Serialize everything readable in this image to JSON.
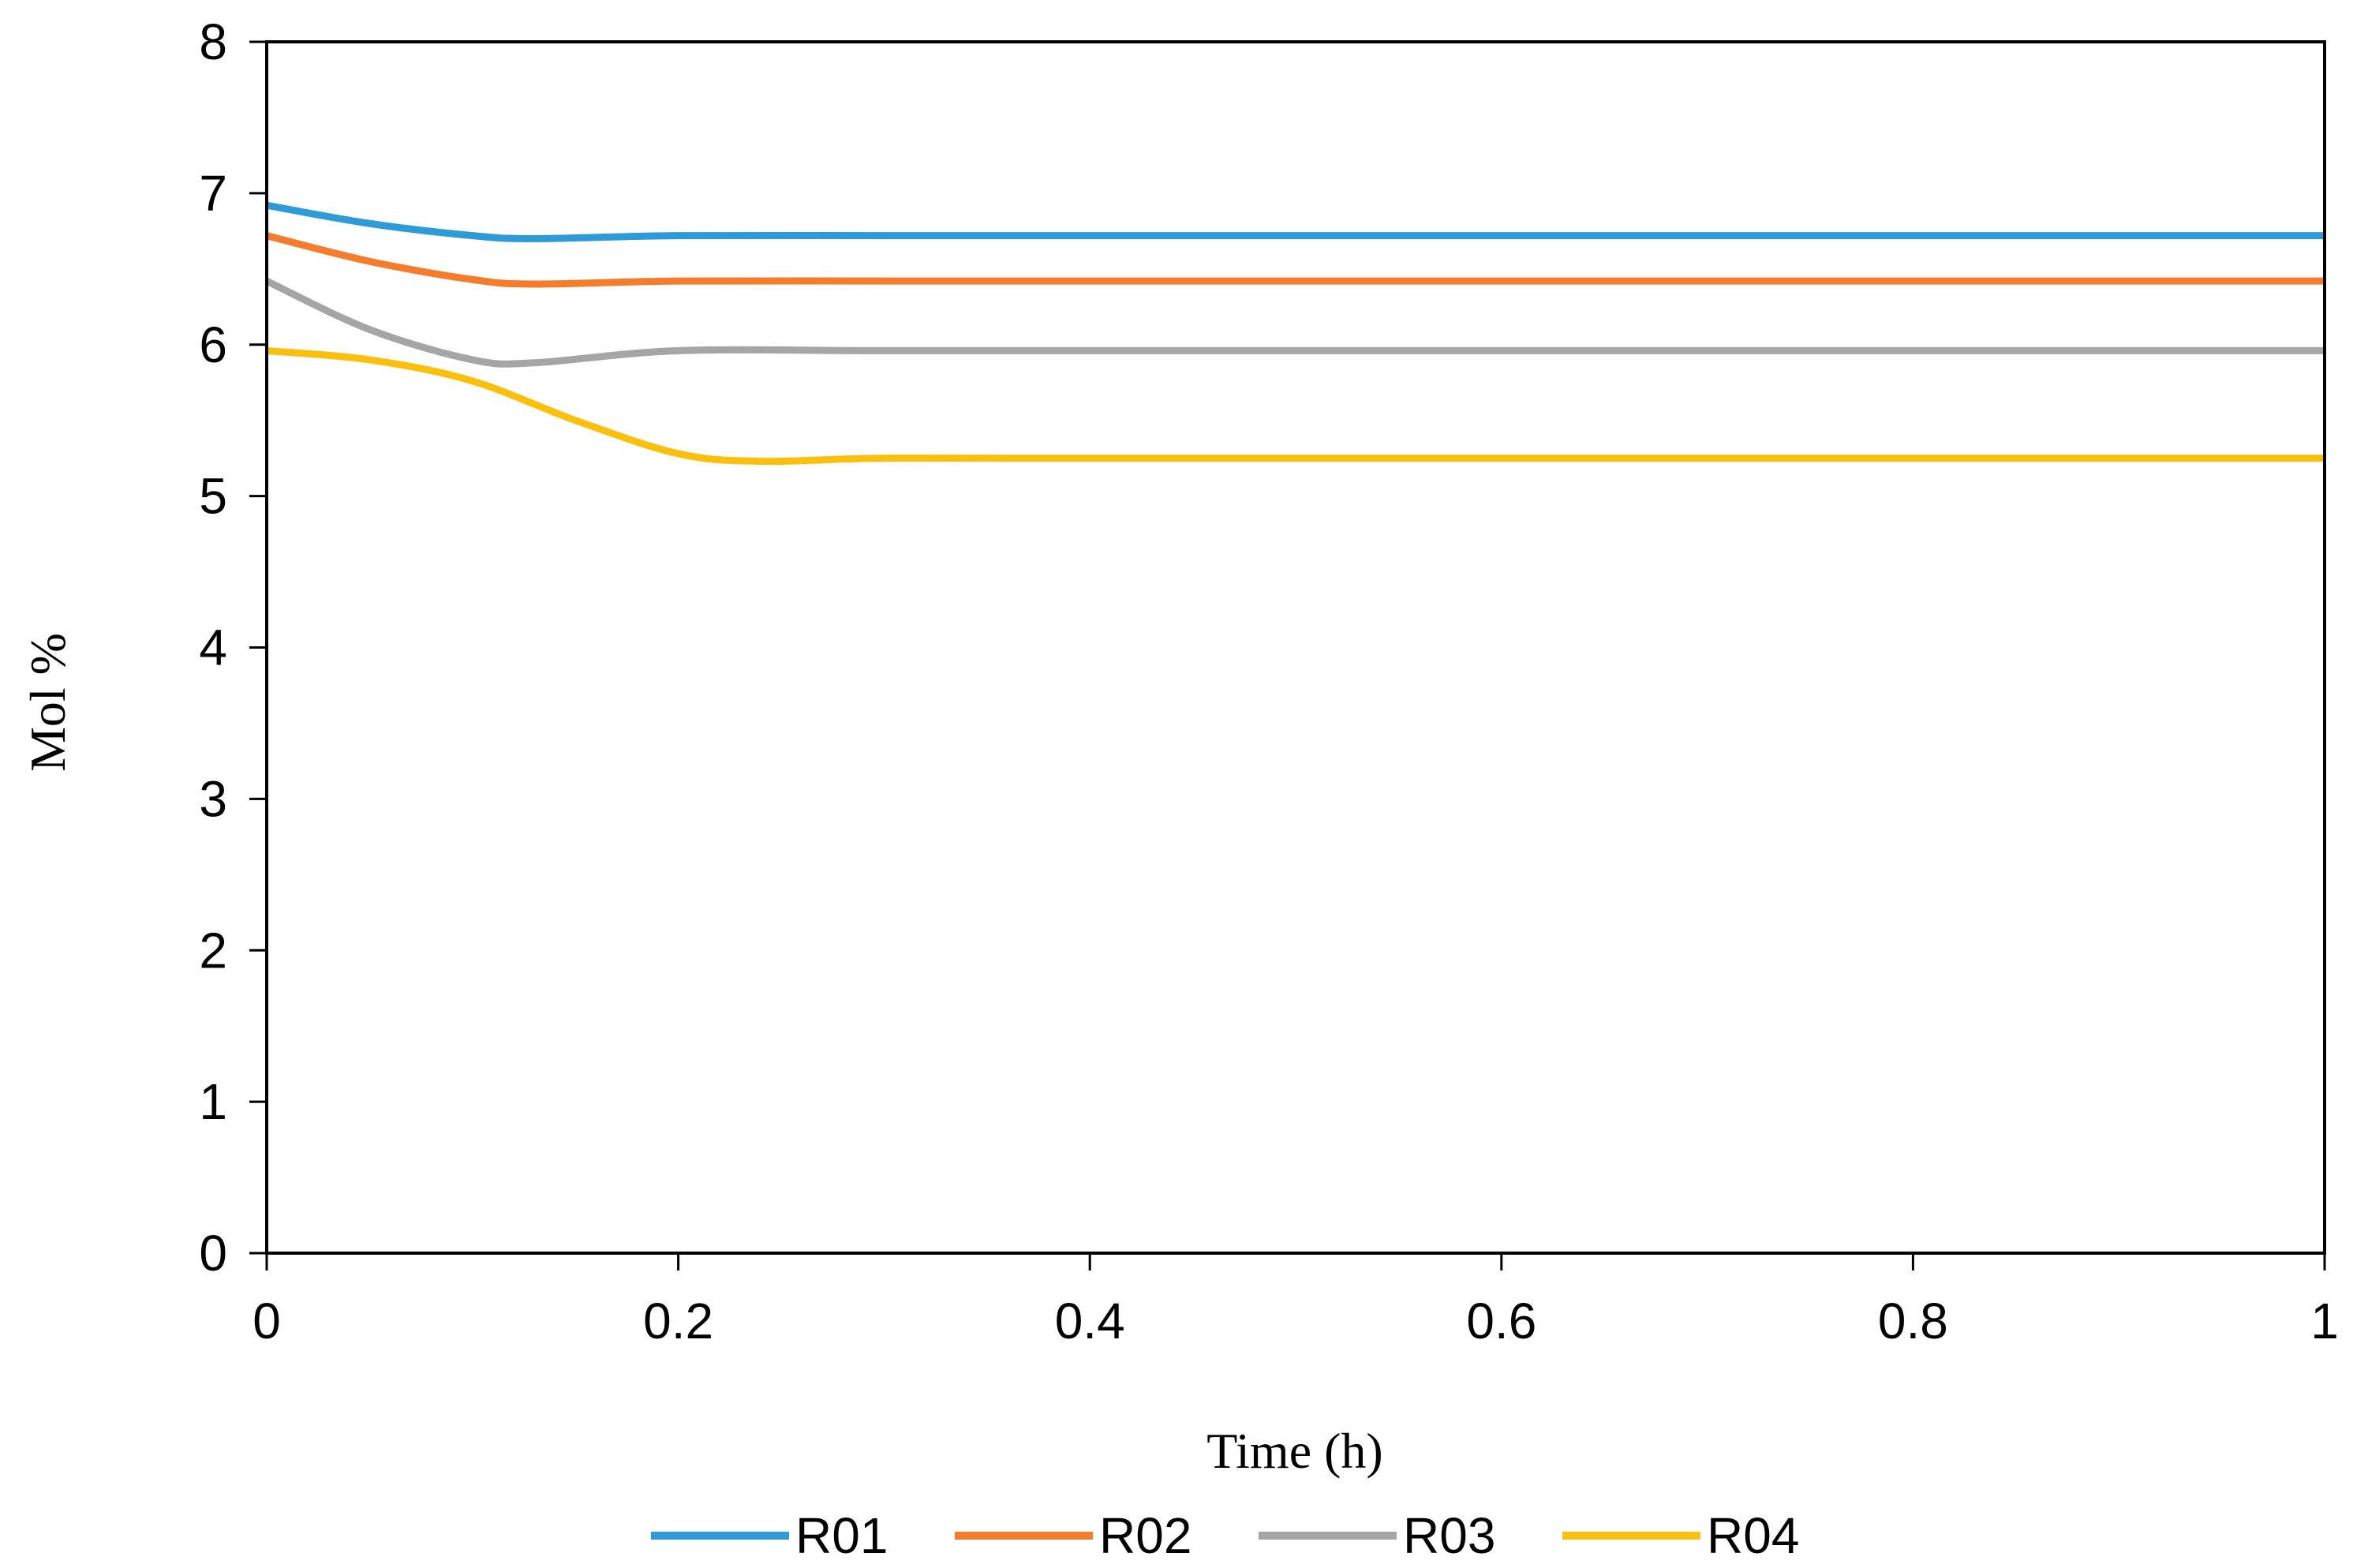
{
  "chart_data": {
    "type": "line",
    "title": "",
    "xlabel": "Time (h)",
    "ylabel": "Mol %",
    "xlim": [
      0,
      1
    ],
    "ylim": [
      0,
      8
    ],
    "xticks": [
      0,
      0.2,
      0.4,
      0.6,
      0.8,
      1
    ],
    "xtick_labels": [
      "0",
      "0.2",
      "0.4",
      "0.6",
      "0.8",
      "1"
    ],
    "yticks": [
      0,
      1,
      2,
      3,
      4,
      5,
      6,
      7,
      8
    ],
    "ytick_labels": [
      "0",
      "1",
      "2",
      "3",
      "4",
      "5",
      "6",
      "7",
      "8"
    ],
    "grid": false,
    "legend_position": "bottom",
    "series": [
      {
        "name": "R01",
        "color": "#2E9AD8",
        "x": [
          0,
          0.05,
          0.1,
          0.13,
          0.2,
          0.3,
          0.4,
          0.6,
          0.8,
          1
        ],
        "y": [
          6.92,
          6.8,
          6.72,
          6.7,
          6.72,
          6.72,
          6.72,
          6.72,
          6.72,
          6.72
        ]
      },
      {
        "name": "R02",
        "color": "#F47C2C",
        "x": [
          0,
          0.05,
          0.1,
          0.13,
          0.2,
          0.3,
          0.4,
          0.6,
          0.8,
          1
        ],
        "y": [
          6.72,
          6.55,
          6.43,
          6.4,
          6.42,
          6.42,
          6.42,
          6.42,
          6.42,
          6.42
        ]
      },
      {
        "name": "R03",
        "color": "#A5A5A5",
        "x": [
          0,
          0.05,
          0.1,
          0.13,
          0.2,
          0.3,
          0.4,
          0.6,
          0.8,
          1
        ],
        "y": [
          6.42,
          6.1,
          5.9,
          5.88,
          5.96,
          5.96,
          5.96,
          5.96,
          5.96,
          5.96
        ]
      },
      {
        "name": "R04",
        "color": "#FBC00D",
        "x": [
          0,
          0.05,
          0.1,
          0.15,
          0.2,
          0.24,
          0.3,
          0.4,
          0.6,
          0.8,
          1
        ],
        "y": [
          5.96,
          5.9,
          5.76,
          5.5,
          5.28,
          5.23,
          5.25,
          5.25,
          5.25,
          5.25,
          5.25
        ]
      }
    ]
  }
}
